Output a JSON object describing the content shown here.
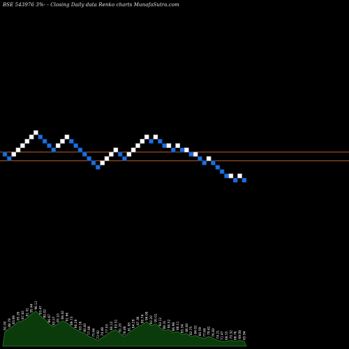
{
  "header": {
    "title": "BSE 543976  3%- -  Closing Daily data  Renko  charts MunafaSutra.com"
  },
  "colors": {
    "background": "#000000",
    "up_brick": "#ffffff",
    "down_brick": "#1e6fe0",
    "brick_border": "#0b3f8a",
    "reference_line": "#c0602a",
    "volume_fill": "#0b3a0b",
    "volume_stroke": "#2e7d2e",
    "volume_label": "#ffffff"
  },
  "chart_data": {
    "type": "renko",
    "brick_size_pct": 3,
    "bricks": [
      {
        "dir": "down",
        "level": 0
      },
      {
        "dir": "down",
        "level": -1
      },
      {
        "dir": "up",
        "level": 0
      },
      {
        "dir": "up",
        "level": 1
      },
      {
        "dir": "up",
        "level": 2
      },
      {
        "dir": "up",
        "level": 3
      },
      {
        "dir": "up",
        "level": 4
      },
      {
        "dir": "up",
        "level": 5
      },
      {
        "dir": "down",
        "level": 4
      },
      {
        "dir": "down",
        "level": 3
      },
      {
        "dir": "down",
        "level": 2
      },
      {
        "dir": "down",
        "level": 1
      },
      {
        "dir": "up",
        "level": 2
      },
      {
        "dir": "up",
        "level": 3
      },
      {
        "dir": "up",
        "level": 4
      },
      {
        "dir": "down",
        "level": 3
      },
      {
        "dir": "down",
        "level": 2
      },
      {
        "dir": "down",
        "level": 1
      },
      {
        "dir": "down",
        "level": 0
      },
      {
        "dir": "down",
        "level": -1
      },
      {
        "dir": "down",
        "level": -2
      },
      {
        "dir": "down",
        "level": -3
      },
      {
        "dir": "up",
        "level": -2
      },
      {
        "dir": "up",
        "level": -1
      },
      {
        "dir": "up",
        "level": 0
      },
      {
        "dir": "up",
        "level": 1
      },
      {
        "dir": "down",
        "level": 0
      },
      {
        "dir": "down",
        "level": -1
      },
      {
        "dir": "up",
        "level": 0
      },
      {
        "dir": "up",
        "level": 1
      },
      {
        "dir": "up",
        "level": 2
      },
      {
        "dir": "up",
        "level": 3
      },
      {
        "dir": "up",
        "level": 4
      },
      {
        "dir": "down",
        "level": 3
      },
      {
        "dir": "up",
        "level": 4
      },
      {
        "dir": "down",
        "level": 3
      },
      {
        "dir": "down",
        "level": 2
      },
      {
        "dir": "up",
        "level": 2
      },
      {
        "dir": "down",
        "level": 1
      },
      {
        "dir": "up",
        "level": 2
      },
      {
        "dir": "down",
        "level": 1
      },
      {
        "dir": "up",
        "level": 1
      },
      {
        "dir": "down",
        "level": 0
      },
      {
        "dir": "up",
        "level": 0
      },
      {
        "dir": "down",
        "level": -1
      },
      {
        "dir": "down",
        "level": -2
      },
      {
        "dir": "up",
        "level": -1
      },
      {
        "dir": "down",
        "level": -2
      },
      {
        "dir": "down",
        "level": -3
      },
      {
        "dir": "down",
        "level": -4
      },
      {
        "dir": "down",
        "level": -5
      },
      {
        "dir": "up",
        "level": -5
      },
      {
        "dir": "down",
        "level": -6
      },
      {
        "dir": "up",
        "level": -5
      },
      {
        "dir": "down",
        "level": -6
      }
    ],
    "reference_lines": [
      0.5,
      -1.5
    ],
    "volume_profile": [
      0.3,
      0.36,
      0.42,
      0.5,
      0.52,
      0.58,
      0.66,
      0.72,
      0.62,
      0.55,
      0.45,
      0.4,
      0.46,
      0.52,
      0.48,
      0.4,
      0.34,
      0.3,
      0.26,
      0.2,
      0.16,
      0.12,
      0.18,
      0.24,
      0.3,
      0.34,
      0.26,
      0.2,
      0.28,
      0.34,
      0.4,
      0.44,
      0.5,
      0.42,
      0.46,
      0.38,
      0.32,
      0.34,
      0.28,
      0.3,
      0.24,
      0.26,
      0.2,
      0.22,
      0.18,
      0.16,
      0.2,
      0.16,
      0.12,
      0.1,
      0.1,
      0.12,
      0.1,
      0.12,
      0.1
    ],
    "volume_labels": [
      "92.00",
      "88.78",
      "83.69",
      "85.26",
      "87.82",
      "91.01",
      "95.44",
      "96.12",
      "93.47",
      "90.02",
      "86.67",
      "83.57",
      "85.10",
      "88.42",
      "91.66",
      "89.73",
      "86.28",
      "83.16",
      "80.40",
      "77.89",
      "75.66",
      "72.92",
      "74.48",
      "77.03",
      "80.12",
      "83.31",
      "81.20",
      "78.48",
      "81.95",
      "84.29",
      "87.36",
      "90.74",
      "94.08",
      "92.20",
      "95.01",
      "93.12",
      "89.31",
      "90.52",
      "86.98",
      "88.11",
      "85.34",
      "86.40",
      "82.75",
      "84.02",
      "80.59",
      "77.68",
      "79.42",
      "76.80",
      "74.21",
      "71.47",
      "68.55",
      "70.32",
      "66.76",
      "69.08",
      "65.94"
    ]
  }
}
